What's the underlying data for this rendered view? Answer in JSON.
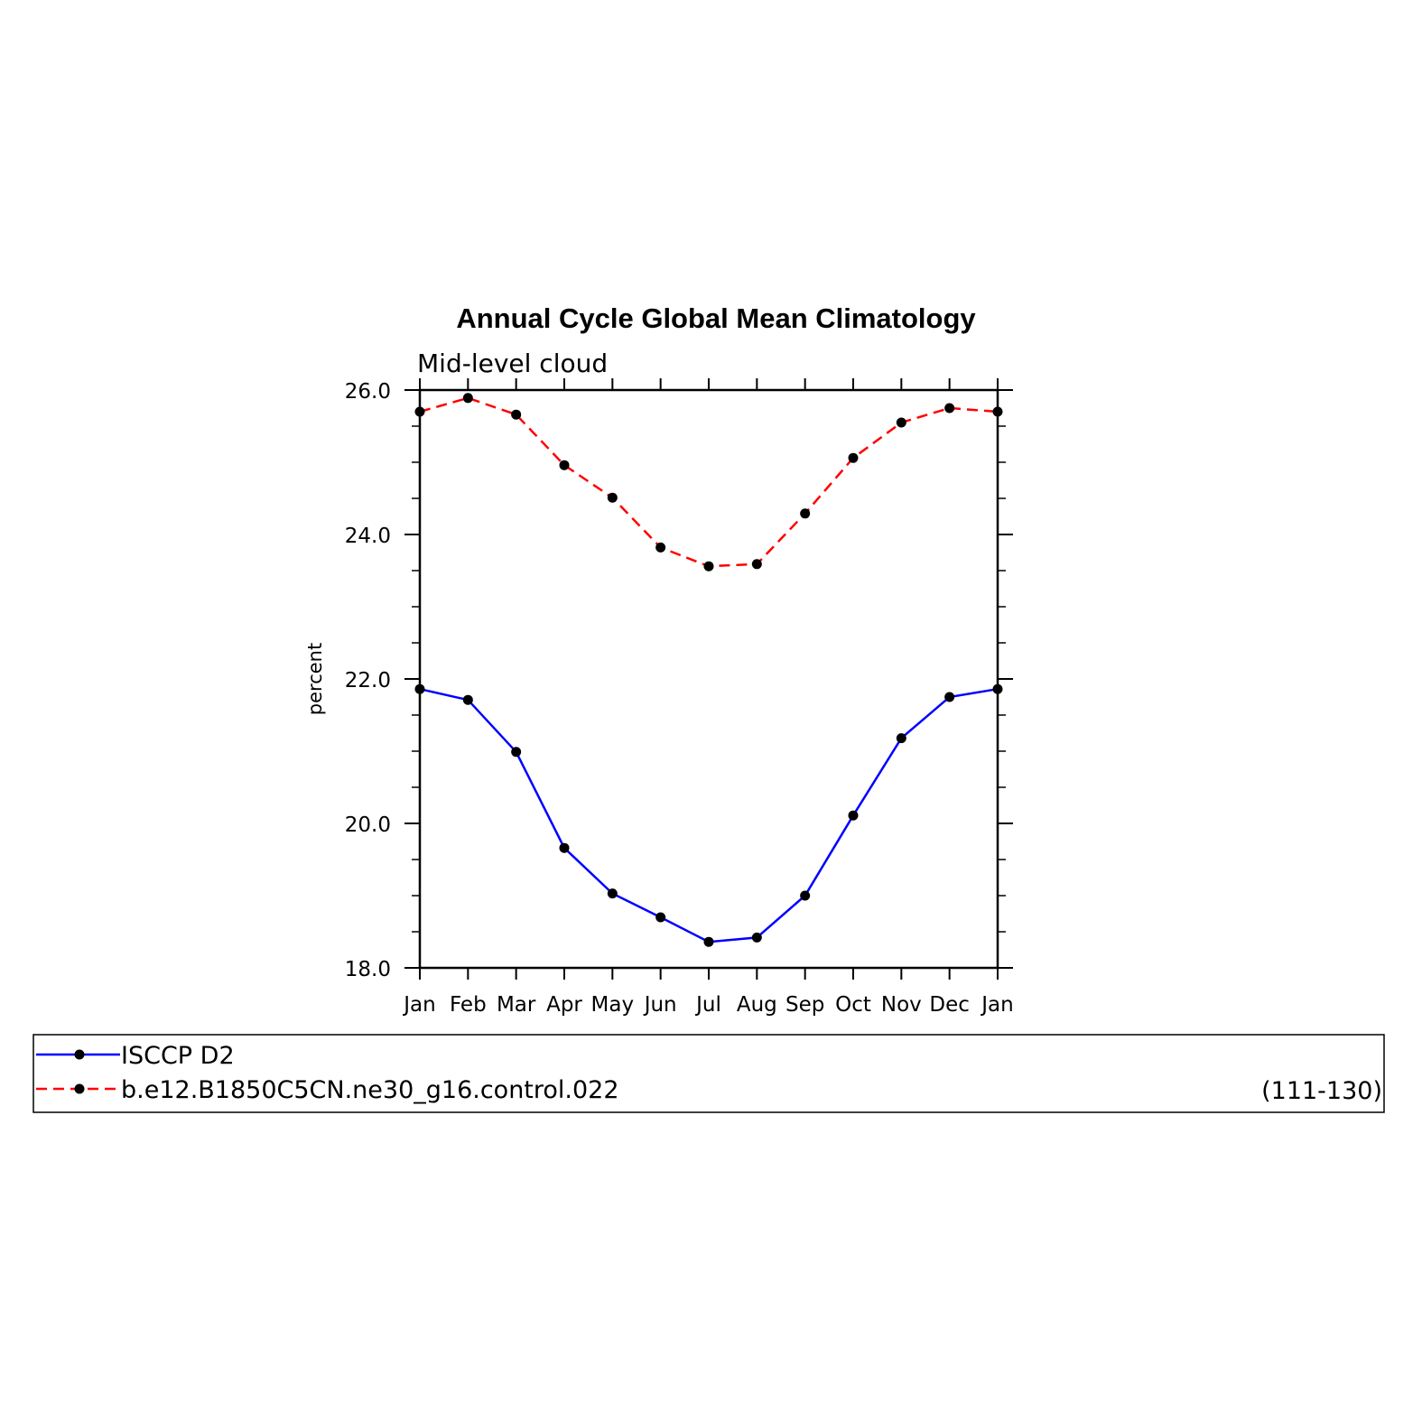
{
  "chart_data": {
    "type": "line",
    "title": "Annual Cycle Global Mean Climatology",
    "subtitle": "Mid-level cloud",
    "xlabel": "",
    "ylabel": "percent",
    "categories": [
      "Jan",
      "Feb",
      "Mar",
      "Apr",
      "May",
      "Jun",
      "Jul",
      "Aug",
      "Sep",
      "Oct",
      "Nov",
      "Dec",
      "Jan"
    ],
    "ylim": [
      18.0,
      26.0
    ],
    "yticks": [
      "18.0",
      "20.0",
      "22.0",
      "24.0",
      "26.0"
    ],
    "series": [
      {
        "name": "ISCCP D2",
        "color": "#0000ff",
        "dash": "solid",
        "values": [
          21.86,
          21.71,
          20.99,
          19.66,
          19.03,
          18.7,
          18.36,
          18.42,
          19.0,
          20.11,
          21.18,
          21.75,
          21.86
        ]
      },
      {
        "name": "b.e12.B1850C5CN.ne30_g16.control.022",
        "color": "#ff0000",
        "dash": "dashed",
        "values": [
          25.7,
          25.89,
          25.66,
          24.96,
          24.51,
          23.82,
          23.56,
          23.59,
          24.29,
          25.06,
          25.55,
          25.75,
          25.7
        ]
      }
    ],
    "legend_note": "(111-130)",
    "legend_position": "bottom",
    "marker_color": "#000000",
    "grid": false
  }
}
